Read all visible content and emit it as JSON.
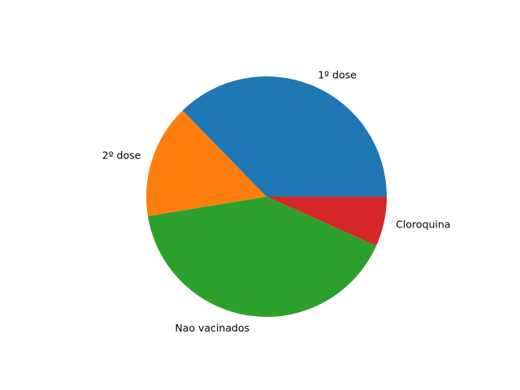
{
  "chart_data": {
    "type": "pie",
    "title": "",
    "slices": [
      {
        "label": "1º dose",
        "value": 37.3,
        "color": "#1f77b4"
      },
      {
        "label": "2º dose",
        "value": 15.3,
        "color": "#ff7f0e"
      },
      {
        "label": "Nao vacinados",
        "value": 40.7,
        "color": "#2ca02c"
      },
      {
        "label": "Cloroquina",
        "value": 6.7,
        "color": "#d62728"
      }
    ],
    "start_angle_deg": 0,
    "direction": "counterclockwise",
    "legend": "none"
  }
}
